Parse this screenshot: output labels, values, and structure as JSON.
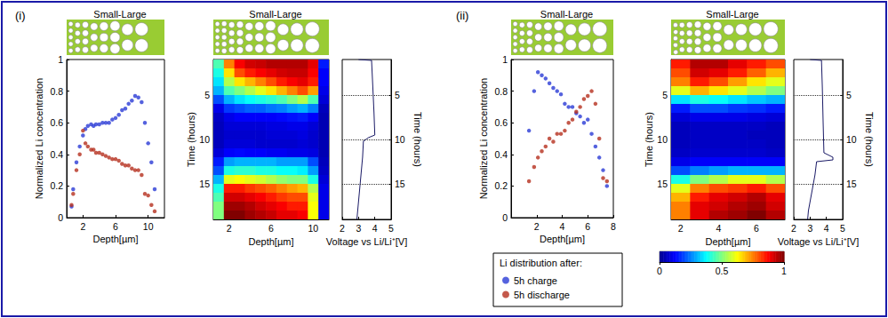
{
  "chart_data": [
    {
      "type": "scatter",
      "panel_label": "(i)",
      "title": "Small-Large",
      "x_label": "Depth[µm]",
      "y_label": "Normalized Li concentration",
      "xlim": [
        0,
        12
      ],
      "xticks": [
        2,
        6,
        10
      ],
      "ylim": [
        0,
        1
      ],
      "yticks": [
        0,
        0.2,
        0.4,
        0.6,
        0.8,
        1
      ],
      "grid": false,
      "series": [
        {
          "name": "5h charge",
          "color": "#2b3bd6",
          "marker": "circle",
          "x": [
            0.6,
            0.8,
            1.2,
            1.6,
            2.0,
            2.3,
            2.6,
            3.0,
            3.3,
            3.6,
            4.0,
            4.4,
            4.8,
            5.2,
            5.6,
            6.0,
            6.4,
            6.8,
            7.2,
            7.6,
            8.0,
            8.4,
            8.8,
            9.2,
            9.6,
            10.0,
            10.4,
            10.8
          ],
          "values": [
            0.07,
            0.18,
            0.35,
            0.45,
            0.52,
            0.56,
            0.58,
            0.59,
            0.58,
            0.59,
            0.59,
            0.6,
            0.6,
            0.6,
            0.62,
            0.63,
            0.65,
            0.68,
            0.69,
            0.72,
            0.74,
            0.77,
            0.76,
            0.73,
            0.6,
            0.47,
            0.35,
            0.18
          ]
        },
        {
          "name": "5h discharge",
          "color": "#b5301e",
          "marker": "circle",
          "x": [
            0.6,
            0.8,
            1.2,
            1.6,
            2.0,
            2.3,
            2.6,
            3.0,
            3.3,
            3.6,
            4.0,
            4.4,
            4.8,
            5.2,
            5.6,
            6.0,
            6.4,
            6.8,
            7.2,
            7.6,
            8.0,
            8.4,
            8.8,
            9.2,
            9.6,
            10.0,
            10.4,
            10.8
          ],
          "values": [
            0.08,
            0.15,
            0.3,
            0.4,
            0.55,
            0.47,
            0.45,
            0.43,
            0.43,
            0.41,
            0.41,
            0.4,
            0.39,
            0.38,
            0.37,
            0.37,
            0.36,
            0.34,
            0.33,
            0.33,
            0.31,
            0.3,
            0.3,
            0.27,
            0.15,
            0.14,
            0.08,
            0.04
          ]
        }
      ]
    },
    {
      "type": "heatmap",
      "title": "Small-Large",
      "x_label": "Depth[µm]",
      "y_label": "Time (hours)",
      "xlim": [
        0.5,
        11.5
      ],
      "xticks": [
        2,
        6,
        10
      ],
      "ylim": [
        1,
        19
      ],
      "yticks": [
        5,
        10,
        15
      ],
      "x": [
        1,
        2,
        3,
        4,
        5,
        6,
        7,
        8,
        9,
        10,
        11
      ],
      "y": [
        1.5,
        2.5,
        3.5,
        4.5,
        5.5,
        6.5,
        7.5,
        8.5,
        9.5,
        10.5,
        11.5,
        12.5,
        13.5,
        14.5,
        15.5,
        16.5,
        17.5,
        18.5
      ],
      "cells": [
        [
          0.45,
          0.75,
          0.88,
          0.92,
          0.93,
          0.95,
          0.95,
          0.95,
          0.95,
          0.9,
          0.15
        ],
        [
          0.4,
          0.65,
          0.8,
          0.85,
          0.88,
          0.9,
          0.92,
          0.93,
          0.93,
          0.88,
          0.12
        ],
        [
          0.35,
          0.55,
          0.65,
          0.7,
          0.75,
          0.8,
          0.85,
          0.88,
          0.9,
          0.85,
          0.12
        ],
        [
          0.3,
          0.45,
          0.5,
          0.55,
          0.6,
          0.65,
          0.7,
          0.75,
          0.8,
          0.72,
          0.1
        ],
        [
          0.2,
          0.3,
          0.35,
          0.38,
          0.4,
          0.42,
          0.45,
          0.5,
          0.55,
          0.45,
          0.08
        ],
        [
          0.1,
          0.18,
          0.2,
          0.22,
          0.22,
          0.24,
          0.25,
          0.28,
          0.3,
          0.25,
          0.05
        ],
        [
          0.06,
          0.1,
          0.12,
          0.12,
          0.12,
          0.12,
          0.13,
          0.14,
          0.15,
          0.12,
          0.04
        ],
        [
          0.05,
          0.08,
          0.08,
          0.08,
          0.08,
          0.09,
          0.09,
          0.1,
          0.1,
          0.08,
          0.04
        ],
        [
          0.05,
          0.07,
          0.07,
          0.07,
          0.07,
          0.08,
          0.08,
          0.08,
          0.09,
          0.07,
          0.04
        ],
        [
          0.05,
          0.08,
          0.08,
          0.08,
          0.07,
          0.07,
          0.07,
          0.07,
          0.08,
          0.07,
          0.04
        ],
        [
          0.08,
          0.12,
          0.13,
          0.12,
          0.12,
          0.11,
          0.11,
          0.1,
          0.1,
          0.09,
          0.04
        ],
        [
          0.15,
          0.28,
          0.3,
          0.3,
          0.3,
          0.3,
          0.28,
          0.28,
          0.28,
          0.2,
          0.05
        ],
        [
          0.2,
          0.4,
          0.42,
          0.42,
          0.4,
          0.4,
          0.38,
          0.38,
          0.36,
          0.28,
          0.06
        ],
        [
          0.3,
          0.6,
          0.62,
          0.6,
          0.58,
          0.55,
          0.52,
          0.5,
          0.5,
          0.4,
          0.08
        ],
        [
          0.4,
          0.85,
          0.85,
          0.82,
          0.8,
          0.78,
          0.75,
          0.72,
          0.7,
          0.55,
          0.1
        ],
        [
          0.45,
          0.92,
          0.92,
          0.9,
          0.88,
          0.85,
          0.82,
          0.8,
          0.8,
          0.6,
          0.1
        ],
        [
          0.5,
          0.97,
          0.97,
          0.95,
          0.92,
          0.9,
          0.88,
          0.85,
          0.85,
          0.62,
          0.1
        ],
        [
          0.5,
          1,
          1,
          0.97,
          0.95,
          0.93,
          0.9,
          0.9,
          0.88,
          0.62,
          0.1
        ]
      ]
    },
    {
      "type": "line",
      "x_label": "Voltage vs Li/Li⁺[V]",
      "y_label": "Time (hours)",
      "xlim": [
        2,
        5
      ],
      "xticks": [
        2,
        3,
        4,
        5
      ],
      "ylim": [
        1,
        19
      ],
      "yticks": [
        5,
        10,
        15
      ],
      "color": "#1a1a66",
      "line_style": "solid",
      "x": [
        3.0,
        3.8,
        3.85,
        3.9,
        3.95,
        4.0,
        3.6,
        3.3,
        3.25,
        3.15,
        3.05,
        2.95,
        2.9
      ],
      "values": [
        1,
        1.1,
        3,
        5,
        7,
        9.5,
        9.8,
        10.2,
        12,
        14,
        16,
        18,
        19
      ],
      "reference_lines": [
        5,
        10,
        15
      ]
    },
    {
      "type": "scatter",
      "panel_label": "(ii)",
      "title": "Small-Large",
      "x_label": "Depth[µm]",
      "y_label": "Normalized Li concentration",
      "xlim": [
        0,
        8
      ],
      "xticks": [
        2,
        4,
        6,
        8
      ],
      "ylim": [
        0,
        1
      ],
      "yticks": [
        0,
        0.2,
        0.4,
        0.6,
        0.8,
        1
      ],
      "grid": false,
      "legend": "bottom",
      "legend_title": "Li distribution after:",
      "series": [
        {
          "name": "5h charge",
          "color": "#2b3bd6",
          "marker": "circle",
          "x": [
            1.4,
            1.8,
            2.1,
            2.4,
            2.7,
            3.0,
            3.3,
            3.6,
            3.9,
            4.2,
            4.5,
            4.8,
            5.1,
            5.4,
            5.7,
            6.0,
            6.3,
            6.6,
            6.9,
            7.2,
            7.5
          ],
          "values": [
            0.55,
            0.8,
            0.92,
            0.9,
            0.88,
            0.85,
            0.82,
            0.8,
            0.78,
            0.72,
            0.7,
            0.7,
            0.66,
            0.64,
            0.6,
            0.62,
            0.53,
            0.45,
            0.38,
            0.3,
            0.2
          ]
        },
        {
          "name": "5h discharge",
          "color": "#b5301e",
          "marker": "circle",
          "x": [
            1.4,
            1.8,
            2.1,
            2.4,
            2.7,
            3.0,
            3.3,
            3.6,
            3.9,
            4.2,
            4.5,
            4.8,
            5.1,
            5.4,
            5.7,
            6.0,
            6.3,
            6.6,
            6.9,
            7.2,
            7.5
          ],
          "values": [
            0.23,
            0.32,
            0.38,
            0.42,
            0.45,
            0.5,
            0.48,
            0.53,
            0.53,
            0.55,
            0.6,
            0.62,
            0.67,
            0.7,
            0.75,
            0.77,
            0.8,
            0.72,
            0.5,
            0.25,
            0.23
          ]
        }
      ]
    },
    {
      "type": "heatmap",
      "title": "Small-Large",
      "x_label": "Depth[µm]",
      "y_label": "Time (hours)",
      "xlim": [
        1.5,
        7.5
      ],
      "xticks": [
        2,
        4,
        6
      ],
      "ylim": [
        1,
        19
      ],
      "yticks": [
        5,
        10,
        15
      ],
      "x": [
        2,
        3,
        4,
        5,
        6,
        7
      ],
      "y": [
        1.5,
        2.5,
        3.5,
        4.5,
        5.5,
        6.5,
        7.5,
        8.5,
        9.5,
        10.5,
        11.5,
        12.5,
        13.5,
        14.5,
        15.5,
        16.5,
        17.5,
        18.5
      ],
      "cells": [
        [
          0.85,
          0.95,
          0.95,
          0.9,
          0.85,
          0.8
        ],
        [
          0.8,
          0.92,
          0.9,
          0.85,
          0.78,
          0.7
        ],
        [
          0.75,
          0.85,
          0.8,
          0.72,
          0.65,
          0.6
        ],
        [
          0.6,
          0.7,
          0.65,
          0.6,
          0.55,
          0.5
        ],
        [
          0.35,
          0.4,
          0.38,
          0.35,
          0.32,
          0.3
        ],
        [
          0.15,
          0.2,
          0.2,
          0.18,
          0.17,
          0.15
        ],
        [
          0.08,
          0.1,
          0.1,
          0.1,
          0.09,
          0.08
        ],
        [
          0.05,
          0.06,
          0.06,
          0.06,
          0.06,
          0.05
        ],
        [
          0.05,
          0.06,
          0.06,
          0.06,
          0.05,
          0.05
        ],
        [
          0.05,
          0.06,
          0.06,
          0.06,
          0.06,
          0.05
        ],
        [
          0.06,
          0.07,
          0.07,
          0.07,
          0.07,
          0.06
        ],
        [
          0.1,
          0.12,
          0.12,
          0.12,
          0.12,
          0.12
        ],
        [
          0.2,
          0.25,
          0.28,
          0.3,
          0.3,
          0.3
        ],
        [
          0.4,
          0.5,
          0.55,
          0.6,
          0.6,
          0.55
        ],
        [
          0.6,
          0.75,
          0.8,
          0.82,
          0.85,
          0.8
        ],
        [
          0.7,
          0.85,
          0.9,
          0.92,
          0.95,
          0.9
        ],
        [
          0.75,
          0.9,
          0.92,
          0.95,
          0.97,
          0.92
        ],
        [
          0.75,
          0.9,
          0.95,
          0.97,
          1.0,
          0.95
        ]
      ],
      "colorbar_range": [
        0,
        1
      ],
      "colorbar_ticks": [
        0,
        0.5,
        1
      ]
    },
    {
      "type": "line",
      "x_label": "Voltage vs Li/Li⁺[V]",
      "y_label": "Time (hours)",
      "xlim": [
        2,
        5
      ],
      "xticks": [
        2,
        3,
        4,
        5
      ],
      "ylim": [
        1,
        19
      ],
      "yticks": [
        5,
        10,
        15
      ],
      "color": "#1a1a66",
      "line_style": "solid",
      "x": [
        3.0,
        3.7,
        3.75,
        3.8,
        3.85,
        4.4,
        4.4,
        3.4,
        3.3,
        3.1,
        2.9,
        2.85
      ],
      "values": [
        1,
        1.1,
        4,
        8,
        11.5,
        12,
        12.3,
        12.5,
        14,
        16,
        18,
        19
      ],
      "reference_lines": [
        5,
        10,
        15
      ]
    }
  ]
}
